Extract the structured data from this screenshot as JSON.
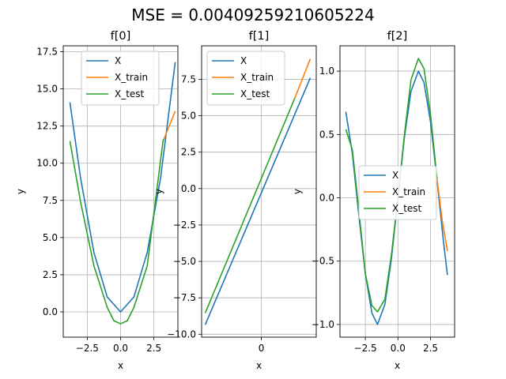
{
  "figure": {
    "suptitle": "MSE = 0.00409259210605224"
  },
  "legend": {
    "entries": [
      {
        "name": "X",
        "color": "#1f77b4"
      },
      {
        "name": "X_train",
        "color": "#ff7f0e"
      },
      {
        "name": "X_test",
        "color": "#2ca02c"
      }
    ]
  },
  "chart_data": [
    {
      "type": "line",
      "title": "f[0]",
      "xlabel": "x",
      "ylabel": "y",
      "xlim": [
        -4.3,
        4.3
      ],
      "ylim": [
        -1.7,
        17.9
      ],
      "xticks": [
        {
          "v": -2.5,
          "label": "−2.5"
        },
        {
          "v": 0,
          "label": "0.0"
        },
        {
          "v": 2.5,
          "label": "2.5"
        }
      ],
      "yticks": [
        {
          "v": 0,
          "label": "0.0"
        },
        {
          "v": 2.5,
          "label": "2.5"
        },
        {
          "v": 5,
          "label": "5.0"
        },
        {
          "v": 7.5,
          "label": "7.5"
        },
        {
          "v": 10,
          "label": "10.0"
        },
        {
          "v": 12.5,
          "label": "12.5"
        },
        {
          "v": 15,
          "label": "15.0"
        },
        {
          "v": 17.5,
          "label": "17.5"
        }
      ],
      "grid": true,
      "legend_position": "upper center",
      "series": [
        {
          "name": "X",
          "color": "#1f77b4",
          "x": [
            -3.8,
            -3.0,
            -2.0,
            -1.0,
            0.0,
            1.0,
            2.0,
            3.0,
            4.1
          ],
          "y": [
            14.1,
            9.0,
            4.0,
            1.0,
            0.0,
            1.0,
            4.0,
            9.0,
            16.8
          ]
        },
        {
          "name": "X_train",
          "color": "#ff7f0e",
          "x": [
            3.2,
            3.6,
            4.1
          ],
          "y": [
            11.5,
            12.4,
            13.5
          ]
        },
        {
          "name": "X_test",
          "color": "#2ca02c",
          "x": [
            -3.8,
            -3.0,
            -2.0,
            -1.0,
            -0.5,
            0.0,
            0.5,
            1.0,
            2.0,
            3.2
          ],
          "y": [
            11.5,
            7.4,
            3.1,
            0.3,
            -0.6,
            -0.8,
            -0.6,
            0.3,
            3.1,
            11.6
          ]
        }
      ]
    },
    {
      "type": "line",
      "title": "f[1]",
      "xlabel": "x",
      "ylabel": "y",
      "xlim": [
        -5.0,
        4.6
      ],
      "ylim": [
        -10.2,
        9.8
      ],
      "xticks": [
        {
          "v": 0,
          "label": "0"
        }
      ],
      "yticks": [
        {
          "v": -10,
          "label": "−10.0"
        },
        {
          "v": -7.5,
          "label": "−7.5"
        },
        {
          "v": -5,
          "label": "−5.0"
        },
        {
          "v": -2.5,
          "label": "−2.5"
        },
        {
          "v": 0,
          "label": "0.0"
        },
        {
          "v": 2.5,
          "label": "2.5"
        },
        {
          "v": 5,
          "label": "5.0"
        },
        {
          "v": 7.5,
          "label": "7.5"
        }
      ],
      "grid": true,
      "legend_position": "upper left",
      "series": [
        {
          "name": "X",
          "color": "#1f77b4",
          "x": [
            -4.7,
            4.1
          ],
          "y": [
            -9.35,
            7.6
          ]
        },
        {
          "name": "X_train",
          "color": "#ff7f0e",
          "x": [
            2.8,
            4.1
          ],
          "y": [
            6.2,
            8.9
          ]
        },
        {
          "name": "X_test",
          "color": "#2ca02c",
          "x": [
            -4.7,
            2.8
          ],
          "y": [
            -8.55,
            6.2
          ]
        }
      ]
    },
    {
      "type": "line",
      "title": "f[2]",
      "xlabel": "x",
      "ylabel": "y",
      "xlim": [
        -4.45,
        4.35
      ],
      "ylim": [
        -1.1,
        1.2
      ],
      "xticks": [
        {
          "v": -2.5,
          "label": "−2.5"
        },
        {
          "v": 0,
          "label": "0.0"
        },
        {
          "v": 2.5,
          "label": "2.5"
        }
      ],
      "yticks": [
        {
          "v": -1,
          "label": "−1.0"
        },
        {
          "v": -0.5,
          "label": "−0.5"
        },
        {
          "v": 0,
          "label": "0.0"
        },
        {
          "v": 0.5,
          "label": "0.5"
        },
        {
          "v": 1,
          "label": "1.0"
        }
      ],
      "grid": true,
      "legend_position": "center",
      "series": [
        {
          "name": "X",
          "color": "#1f77b4",
          "x": [
            -4.0,
            -3.5,
            -3.0,
            -2.5,
            -2.0,
            -1.571,
            -1.0,
            -0.5,
            0.0,
            0.5,
            1.0,
            1.571,
            2.0,
            2.5,
            3.0,
            3.5,
            3.8
          ],
          "y": [
            0.68,
            0.35,
            -0.14,
            -0.6,
            -0.91,
            -1.0,
            -0.84,
            -0.48,
            0.0,
            0.48,
            0.84,
            1.0,
            0.91,
            0.6,
            0.14,
            -0.35,
            -0.61
          ]
        },
        {
          "name": "X_train",
          "color": "#ff7f0e",
          "x": [
            3.0,
            3.4,
            3.8
          ],
          "y": [
            0.15,
            -0.18,
            -0.42
          ]
        },
        {
          "name": "X_test",
          "color": "#2ca02c",
          "x": [
            -4.0,
            -3.5,
            -3.0,
            -2.5,
            -2.0,
            -1.571,
            -1.0,
            -0.5,
            0.0,
            0.5,
            1.0,
            1.571,
            2.0,
            2.5,
            3.0
          ],
          "y": [
            0.54,
            0.38,
            -0.1,
            -0.6,
            -0.85,
            -0.9,
            -0.8,
            -0.45,
            0.0,
            0.5,
            0.93,
            1.1,
            1.02,
            0.66,
            0.15
          ]
        }
      ]
    }
  ]
}
